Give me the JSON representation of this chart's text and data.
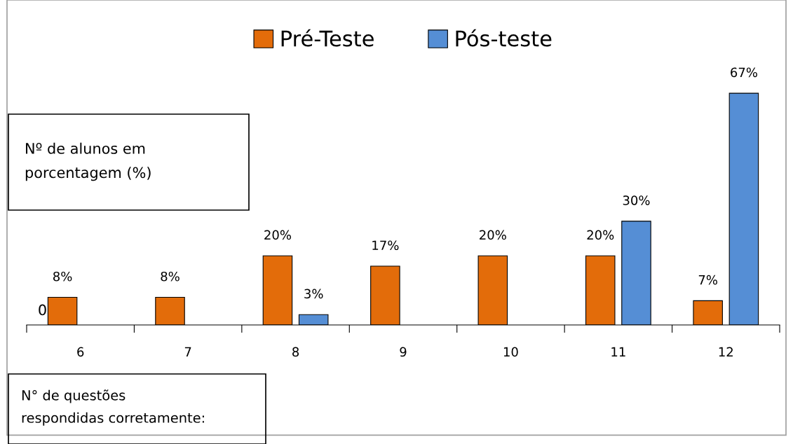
{
  "chart_data": {
    "type": "bar",
    "ylabel": "Nº de alunos em\nporcentagem (%)",
    "xlabel": "N° de questões\nrespondidas corretamente:",
    "categories": [
      "6",
      "7",
      "8",
      "9",
      "10",
      "11",
      "12"
    ],
    "series": [
      {
        "name": "Pré-Teste",
        "color": "#e36c0a",
        "values": [
          8,
          8,
          20,
          17,
          20,
          20,
          7
        ],
        "value_labels": [
          "8%",
          "8%",
          "20%",
          "17%",
          "20%",
          "20%",
          "7%"
        ]
      },
      {
        "name": "Pós-teste",
        "color": "#558ed5",
        "values": [
          null,
          null,
          3,
          null,
          null,
          30,
          67
        ],
        "value_labels": [
          null,
          null,
          "3%",
          null,
          null,
          "30%",
          "67%"
        ]
      }
    ],
    "legend": "top",
    "annotations": [
      "0"
    ]
  }
}
